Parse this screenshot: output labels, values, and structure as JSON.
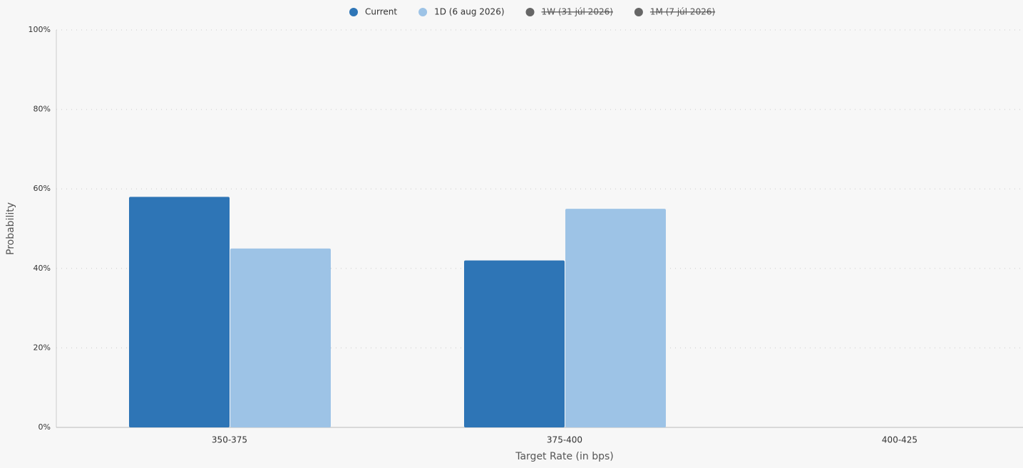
{
  "chart_data": {
    "type": "bar",
    "x_label": "Target Rate (in bps)",
    "y_label": "Probability",
    "categories": [
      "350-375",
      "375-400",
      "400-425"
    ],
    "series": [
      {
        "name": "Current",
        "color": "#2e75b6",
        "values": [
          58,
          42,
          0
        ]
      },
      {
        "name": "1D (6 aug 2026)",
        "color": "#9dc3e6",
        "values": [
          45,
          55,
          0
        ]
      },
      {
        "name": "1W (31 júl 2026)",
        "color": "#666666",
        "hidden": true,
        "values": [
          null,
          null,
          null
        ]
      },
      {
        "name": "1M (7 júl 2026)",
        "color": "#666666",
        "hidden": true,
        "values": [
          null,
          null,
          null
        ]
      }
    ],
    "ylim": [
      0,
      100
    ],
    "yticks": [
      {
        "value": 0,
        "label": "0%"
      },
      {
        "value": 20,
        "label": "20%"
      },
      {
        "value": 40,
        "label": "40%"
      },
      {
        "value": 60,
        "label": "60%"
      },
      {
        "value": 80,
        "label": "80%"
      },
      {
        "value": 100,
        "label": "100%"
      }
    ],
    "grid": true,
    "legend": "top"
  }
}
